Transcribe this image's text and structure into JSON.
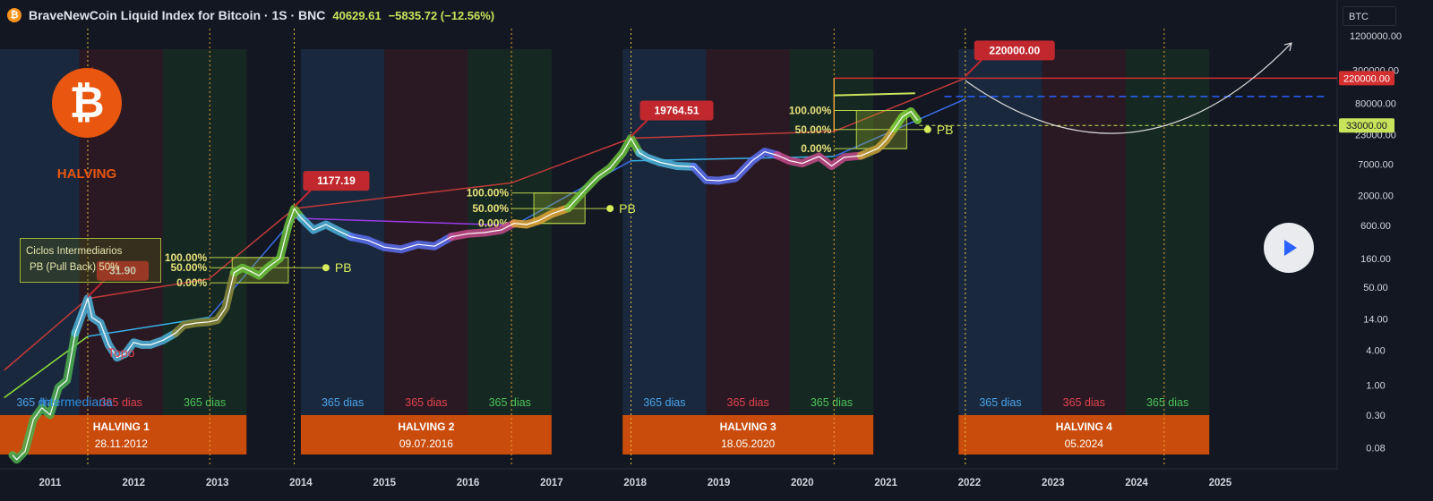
{
  "header": {
    "title": "BraveNewCoin Liquid Index for Bitcoin · 1S · BNC",
    "last": "40629.61",
    "change": "−5835.72 (−12.56%)",
    "symbol_icon": "bitcoin-icon"
  },
  "ticker_box": "BTC",
  "logo": {
    "text": "HALVING",
    "glyph": "₿"
  },
  "info_box": {
    "line1": "Ciclos Intermediarios",
    "line2": "PB (Pull Back) 50%"
  },
  "labels": {
    "topo": "Topo",
    "intermediaria": "Intermediaria",
    "pb": "PB"
  },
  "colors": {
    "background": "#131722",
    "blue_phase": "#1c2a40",
    "red_phase": "#2d1a24",
    "green_phase": "#172a22",
    "halving_box": "#c94c0c",
    "callout": "#c0282e",
    "accent_green": "#c9e35a"
  },
  "chart_data": {
    "type": "line",
    "y_scale": "log",
    "ylim": [
      0.04,
      1600000
    ],
    "x_range": [
      2010.4,
      2026.4
    ],
    "x_ticks": [
      "2011",
      "2012",
      "2013",
      "2014",
      "2015",
      "2016",
      "2017",
      "2018",
      "2019",
      "2020",
      "2021",
      "2022",
      "2023",
      "2024",
      "2025"
    ],
    "y_ticks": [
      "1200000.00",
      "300000.00",
      "80000.00",
      "23000.00",
      "7000.00",
      "2000.00",
      "600.00",
      "160.00",
      "50.00",
      "14.00",
      "4.00",
      "1.00",
      "0.30",
      "0.08"
    ],
    "y_tick_values": [
      1200000,
      300000,
      80000,
      23000,
      7000,
      2000,
      600,
      160,
      50,
      14,
      4,
      1,
      0.3,
      0.08
    ],
    "price_badges": [
      {
        "text": "220000.00",
        "value": 220000,
        "color": "#d32f2f"
      },
      {
        "text": "33000.00",
        "value": 33000,
        "color": "#c9e35a"
      }
    ],
    "series": [
      {
        "x": [
          2010.55,
          2010.6,
          2010.7,
          2010.8,
          2010.9,
          2011.0,
          2011.1,
          2011.2,
          2011.3,
          2011.4,
          2011.45,
          2011.5,
          2011.6,
          2011.7,
          2011.8,
          2011.9,
          2012.0,
          2012.1,
          2012.2,
          2012.35,
          2012.5,
          2012.6,
          2012.75,
          2012.9,
          2013.0,
          2013.1,
          2013.2,
          2013.3,
          2013.4,
          2013.5,
          2013.6,
          2013.75,
          2013.85,
          2013.92,
          2014.0,
          2014.15,
          2014.3,
          2014.45,
          2014.6,
          2014.8,
          2015.0,
          2015.2,
          2015.4,
          2015.6,
          2015.8,
          2016.0,
          2016.2,
          2016.4,
          2016.55,
          2016.7,
          2016.85,
          2017.0,
          2017.2,
          2017.4,
          2017.55,
          2017.7,
          2017.85,
          2017.95,
          2018.05,
          2018.15,
          2018.3,
          2018.5,
          2018.7,
          2018.85,
          2019.0,
          2019.2,
          2019.4,
          2019.55,
          2019.7,
          2019.85,
          2020.0,
          2020.2,
          2020.35,
          2020.5,
          2020.7,
          2020.9,
          2021.0,
          2021.1,
          2021.2,
          2021.3,
          2021.38
        ],
        "values": [
          0.06,
          0.05,
          0.07,
          0.25,
          0.4,
          0.3,
          0.9,
          1.2,
          8,
          20,
          31.9,
          15,
          12,
          5,
          3,
          3.5,
          5.5,
          5,
          5,
          6,
          8,
          11,
          12,
          12.5,
          13.5,
          22,
          90,
          110,
          95,
          80,
          110,
          160,
          600,
          1177.19,
          820,
          500,
          620,
          480,
          380,
          330,
          250,
          230,
          280,
          260,
          380,
          430,
          450,
          500,
          650,
          620,
          730,
          950,
          1200,
          2500,
          4200,
          6000,
          11000,
          19764.51,
          11000,
          9000,
          7500,
          6500,
          6300,
          3700,
          3600,
          4000,
          8000,
          11500,
          10000,
          8000,
          7200,
          9500,
          6500,
          9200,
          9800,
          13000,
          18000,
          29000,
          47000,
          58000,
          40629.61
        ]
      }
    ],
    "callouts": [
      {
        "text": "31.90",
        "x": 2011.45,
        "y": 31.9
      },
      {
        "text": "1177.19",
        "x": 2013.92,
        "y": 1177.19
      },
      {
        "text": "19764.51",
        "x": 2017.95,
        "y": 19764.51
      },
      {
        "text": "220000.00",
        "x": 2021.95,
        "y": 220000
      }
    ],
    "halving_lines": [
      2012.91,
      2016.52,
      2020.38,
      2024.33
    ],
    "top_dotted_lines": [
      2011.45,
      2013.92,
      2017.95,
      2021.95
    ],
    "phases": [
      {
        "from": 2010.35,
        "to": 2011.35,
        "kind": "blue"
      },
      {
        "from": 2011.35,
        "to": 2012.35,
        "kind": "red"
      },
      {
        "from": 2012.35,
        "to": 2013.35,
        "kind": "green"
      },
      {
        "from": 2014.0,
        "to": 2015.0,
        "kind": "blue"
      },
      {
        "from": 2015.0,
        "to": 2016.0,
        "kind": "red"
      },
      {
        "from": 2016.0,
        "to": 2017.0,
        "kind": "green"
      },
      {
        "from": 2017.85,
        "to": 2018.85,
        "kind": "blue"
      },
      {
        "from": 2018.85,
        "to": 2019.85,
        "kind": "red"
      },
      {
        "from": 2019.85,
        "to": 2020.85,
        "kind": "green"
      },
      {
        "from": 2021.87,
        "to": 2022.87,
        "kind": "blue"
      },
      {
        "from": 2022.87,
        "to": 2023.87,
        "kind": "red"
      },
      {
        "from": 2023.87,
        "to": 2024.87,
        "kind": "green"
      }
    ],
    "phase_labels": [
      "365 dias",
      "365 dias",
      "365 dias",
      "365 dias",
      "365 dias",
      "365 dias",
      "365 dias",
      "365 dias",
      "365 dias",
      "365 dias",
      "365 dias",
      "365 dias"
    ],
    "halvings": [
      {
        "title": "HALVING 1",
        "date": "28.11.2012",
        "from": 2010.35,
        "to": 2013.35
      },
      {
        "title": "HALVING 2",
        "date": "09.07.2016",
        "from": 2014.0,
        "to": 2017.0
      },
      {
        "title": "HALVING 3",
        "date": "18.05.2020",
        "from": 2017.85,
        "to": 2020.85
      },
      {
        "title": "HALVING 4",
        "date": "05.2024",
        "from": 2021.87,
        "to": 2024.87
      }
    ],
    "fib_boxes": [
      {
        "x0": 2012.91,
        "x1": 2013.85,
        "p0": 60,
        "p50": 110,
        "p100": 165,
        "labels": [
          "100.00%",
          "50.00%",
          "0.00%"
        ],
        "pb_x": 2014.3
      },
      {
        "x0": 2016.52,
        "x1": 2017.4,
        "p0": 650,
        "p50": 1180,
        "p100": 2200,
        "labels": [
          "100.00%",
          "50.00%",
          "0.00%"
        ],
        "pb_x": 2017.7
      },
      {
        "x0": 2020.38,
        "x1": 2021.25,
        "p0": 13000,
        "p50": 28000,
        "p100": 60000,
        "labels": [
          "100.00%",
          "50.00%",
          "0.00%"
        ],
        "pb_x": 2021.5
      }
    ],
    "trend_lines": {
      "topo": [
        [
          2010.45,
          1.8
        ],
        [
          2011.45,
          31.9
        ],
        [
          2012.9,
          70
        ],
        [
          2013.92,
          1177.19
        ],
        [
          2016.52,
          3300
        ],
        [
          2017.95,
          19764.51
        ],
        [
          2020.38,
          26000
        ],
        [
          2021.95,
          220000
        ]
      ],
      "intermediaria": [
        [
          2010.45,
          0.6
        ],
        [
          2011.45,
          7
        ],
        [
          2012.9,
          15
        ],
        [
          2013.92,
          800
        ],
        [
          2016.55,
          600
        ],
        [
          2017.95,
          8000
        ],
        [
          2020.38,
          9500
        ],
        [
          2021.95,
          95000
        ]
      ]
    }
  }
}
